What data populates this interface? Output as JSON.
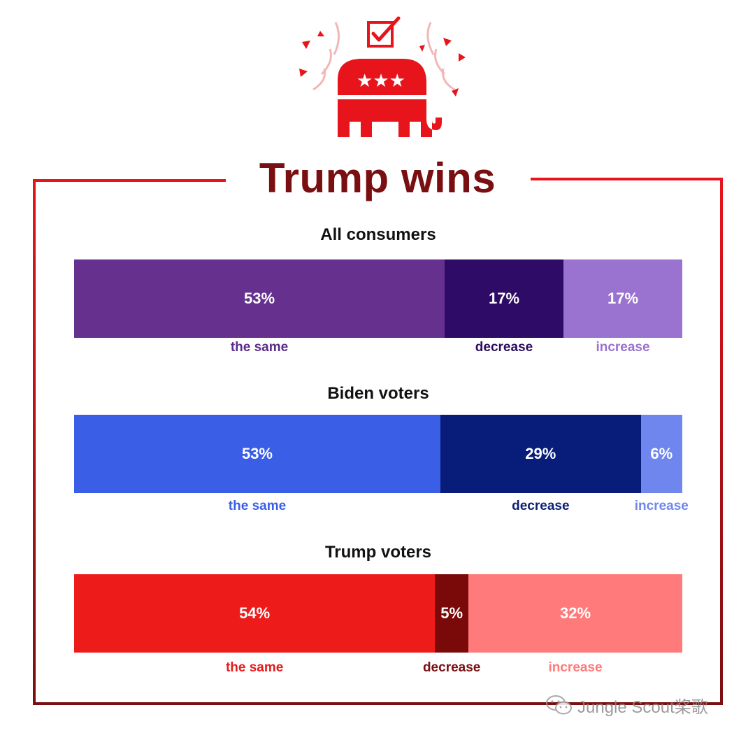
{
  "title": "Trump wins",
  "colors": {
    "title": "#7a0f12",
    "frame_top": "#e8141b",
    "frame_bottom": "#7a0f12",
    "logo_red": "#e8141b"
  },
  "watermark": {
    "text": "Jungle Scout桨歌",
    "icon": "wechat-icon"
  },
  "chart_data": [
    {
      "type": "bar",
      "title": "All consumers",
      "categories": [
        "the same",
        "decrease",
        "increase"
      ],
      "values": [
        53,
        17,
        17
      ],
      "labels": [
        "53%",
        "17%",
        "17%"
      ],
      "colors": [
        "#66308f",
        "#2e0b66",
        "#9a72d0"
      ],
      "label_colors": [
        "#5a2d8a",
        "#2a0d5e",
        "#9a72d0"
      ]
    },
    {
      "type": "bar",
      "title": "Biden voters",
      "categories": [
        "the same",
        "decrease",
        "increase"
      ],
      "values": [
        53,
        29,
        6
      ],
      "labels": [
        "53%",
        "29%",
        "6%"
      ],
      "colors": [
        "#3a5fe6",
        "#081c7a",
        "#6e86ee"
      ],
      "label_colors": [
        "#3a5fe6",
        "#0d1f72",
        "#6e86ee"
      ]
    },
    {
      "type": "bar",
      "title": "Trump voters",
      "categories": [
        "the same",
        "decrease",
        "increase"
      ],
      "values": [
        54,
        5,
        32
      ],
      "labels": [
        "54%",
        "5%",
        "32%"
      ],
      "colors": [
        "#ee1b1b",
        "#7a0a0a",
        "#ff7a7a"
      ],
      "label_colors": [
        "#e61b1b",
        "#7a0f12",
        "#ff7a7a"
      ]
    }
  ]
}
